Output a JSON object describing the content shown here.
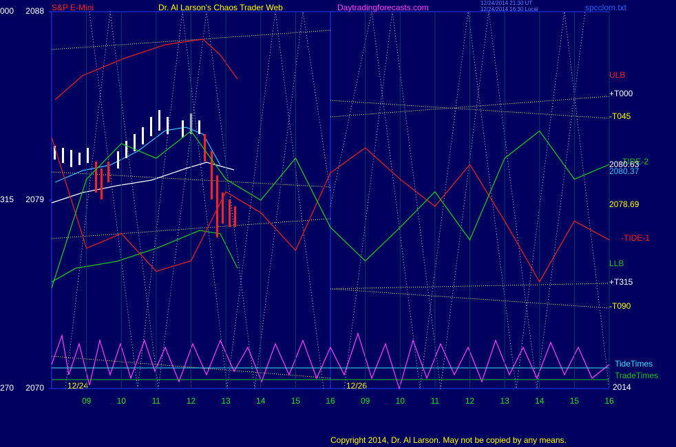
{
  "chart_data": {
    "type": "line",
    "title": "Dr. Al Larson's Chaos Trader Web",
    "instrument": "S&P E-Mini",
    "website": "Daytradingforecasts.com",
    "timestamps": [
      "12/24/2014 21:30 UT",
      "12/24/2014 16:30 Local"
    ],
    "file_name": "spcclom.txt",
    "copyright": "Copyright 2014, Dr. Al Larson. May not be copied by any means.",
    "ylim": [
      2070,
      2088
    ],
    "yticks": [
      2088,
      2079,
      2070
    ],
    "angle_labels": [
      "000",
      "315",
      "270"
    ],
    "x_labels": [
      "09",
      "10",
      "11",
      "12",
      "13",
      "14",
      "15",
      "16",
      "09",
      "10",
      "11",
      "12",
      "13",
      "14",
      "15",
      "16"
    ],
    "date_labels": [
      "12/24",
      "12/26"
    ],
    "year_label": "2014",
    "right_labels": [
      {
        "text": "ULB",
        "color": "#ff2020"
      },
      {
        "text": "+T000",
        "color": "#ffffff"
      },
      {
        "text": "-T045",
        "color": "#ffff00"
      },
      {
        "text": "-TIDE-2",
        "color": "#20c020"
      },
      {
        "text": "2080.63",
        "color": "#ffffff"
      },
      {
        "text": "2080.37",
        "color": "#40c0ff"
      },
      {
        "text": "2078.69",
        "color": "#ffff00"
      },
      {
        "text": "-TIDE-1",
        "color": "#ff2020"
      },
      {
        "text": "LLB",
        "color": "#20c020"
      },
      {
        "text": "+T315",
        "color": "#ffffff"
      },
      {
        "text": "-T090",
        "color": "#ffff00"
      },
      {
        "text": "TideTimes",
        "color": "#40e0ff"
      },
      {
        "text": "TradeTimes",
        "color": "#20c020"
      }
    ],
    "series": [
      {
        "name": "-TIDE-1",
        "color": "#e02020",
        "values": [
          2082.0,
          2076.7,
          2077.4,
          2075.6,
          2076.1,
          2079.4,
          2078.4,
          2076.6,
          2080.3,
          2081.5,
          2080.0,
          2078.7,
          2080.7,
          2078.0,
          2075.1,
          2078.0,
          2077.1
        ]
      },
      {
        "name": "-TIDE-2",
        "color": "#20c020",
        "values": [
          2074.8,
          2080.0,
          2081.7,
          2081.0,
          2082.3,
          2080.0,
          2079.0,
          2081.0,
          2077.7,
          2076.1,
          2077.7,
          2079.4,
          2077.1,
          2081.0,
          2082.3,
          2080.0,
          2080.7
        ]
      }
    ]
  }
}
